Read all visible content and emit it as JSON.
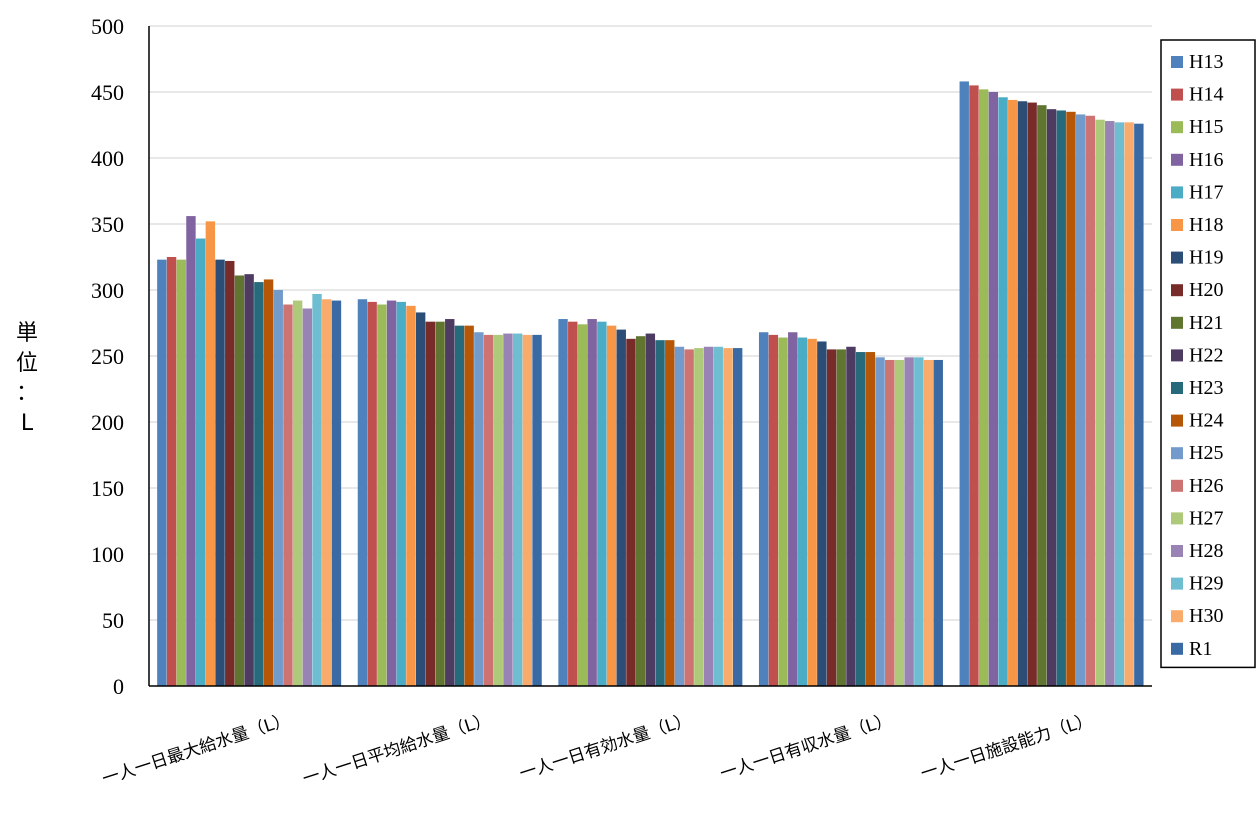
{
  "chart_data": {
    "type": "bar",
    "title": "",
    "xlabel": "",
    "ylabel": "単位：L",
    "ylim": [
      0,
      500
    ],
    "yticks": [
      0,
      50,
      100,
      150,
      200,
      250,
      300,
      350,
      400,
      450,
      500
    ],
    "grid": true,
    "legend_position": "right",
    "categories": [
      "一人一日最大給水量（L）",
      "一人一日平均給水量（L）",
      "一人一日有効水量（L）",
      "一人一日有収水量（L）",
      "一人一日施設能力（L）"
    ],
    "series": [
      {
        "name": "H13",
        "color": "#4f81bd",
        "values": [
          323,
          293,
          278,
          268,
          458
        ]
      },
      {
        "name": "H14",
        "color": "#c0504d",
        "values": [
          325,
          291,
          276,
          266,
          455
        ]
      },
      {
        "name": "H15",
        "color": "#9bbb59",
        "values": [
          323,
          289,
          274,
          264,
          452
        ]
      },
      {
        "name": "H16",
        "color": "#8064a2",
        "values": [
          356,
          292,
          278,
          268,
          450
        ]
      },
      {
        "name": "H17",
        "color": "#4bacc6",
        "values": [
          339,
          291,
          276,
          264,
          446
        ]
      },
      {
        "name": "H18",
        "color": "#f79646",
        "values": [
          352,
          288,
          273,
          263,
          444
        ]
      },
      {
        "name": "H19",
        "color": "#2c4d75",
        "values": [
          323,
          283,
          270,
          261,
          443
        ]
      },
      {
        "name": "H20",
        "color": "#772c2a",
        "values": [
          322,
          276,
          263,
          255,
          442
        ]
      },
      {
        "name": "H21",
        "color": "#5f7530",
        "values": [
          311,
          276,
          265,
          255,
          440
        ]
      },
      {
        "name": "H22",
        "color": "#4d3b62",
        "values": [
          312,
          278,
          267,
          257,
          437
        ]
      },
      {
        "name": "H23",
        "color": "#276a7c",
        "values": [
          306,
          273,
          262,
          253,
          436
        ]
      },
      {
        "name": "H24",
        "color": "#b65708",
        "values": [
          308,
          273,
          262,
          253,
          435
        ]
      },
      {
        "name": "H25",
        "color": "#729aca",
        "values": [
          300,
          268,
          257,
          249,
          433
        ]
      },
      {
        "name": "H26",
        "color": "#cd7371",
        "values": [
          289,
          266,
          255,
          247,
          432
        ]
      },
      {
        "name": "H27",
        "color": "#afc97a",
        "values": [
          292,
          266,
          256,
          247,
          429
        ]
      },
      {
        "name": "H28",
        "color": "#9983b5",
        "values": [
          286,
          267,
          257,
          249,
          428
        ]
      },
      {
        "name": "H29",
        "color": "#6fbdd1",
        "values": [
          297,
          267,
          257,
          249,
          427
        ]
      },
      {
        "name": "H30",
        "color": "#f9ab6b",
        "values": [
          293,
          266,
          256,
          247,
          427
        ]
      },
      {
        "name": "R1",
        "color": "#3a6aa3",
        "values": [
          292,
          266,
          256,
          247,
          426
        ]
      }
    ]
  }
}
